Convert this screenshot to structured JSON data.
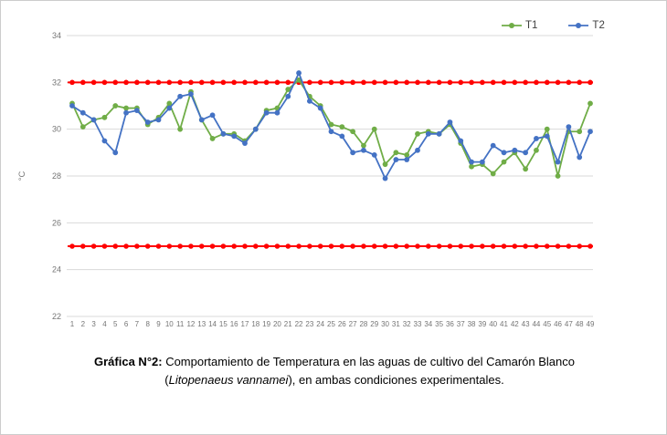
{
  "figure": {
    "caption": {
      "label": "Gráfica N°2:",
      "line1_rest": " Comportamiento de Temperatura en las aguas de cultivo del Camarón Blanco",
      "line2_open": "(",
      "line2_italic": "Litopenaeus vannamei",
      "line2_rest": "), en ambas condiciones experimentales."
    }
  },
  "chart_data": {
    "type": "line",
    "title": "",
    "xlabel": "",
    "ylabel": "°C",
    "ylim": [
      22,
      34
    ],
    "yticks": [
      22,
      24,
      26,
      28,
      30,
      32,
      34
    ],
    "grid": true,
    "legend": {
      "position": "top-right",
      "entries": [
        "T1",
        "T2"
      ]
    },
    "x": [
      1,
      2,
      3,
      4,
      5,
      6,
      7,
      8,
      9,
      10,
      11,
      12,
      13,
      14,
      15,
      16,
      17,
      18,
      19,
      20,
      21,
      22,
      23,
      24,
      25,
      26,
      27,
      28,
      29,
      30,
      31,
      32,
      33,
      34,
      35,
      36,
      37,
      38,
      39,
      40,
      41,
      42,
      43,
      44,
      45,
      46,
      47,
      48,
      49
    ],
    "series": [
      {
        "name": "T1",
        "color": "#70AD47",
        "values": [
          31.1,
          30.1,
          30.4,
          30.5,
          31.0,
          30.9,
          30.9,
          30.2,
          30.5,
          31.1,
          30.0,
          31.6,
          30.4,
          29.6,
          29.8,
          29.8,
          29.5,
          30.0,
          30.8,
          30.9,
          31.7,
          32.1,
          31.4,
          31.0,
          30.2,
          30.1,
          29.9,
          29.3,
          30.0,
          28.5,
          29.0,
          28.9,
          29.8,
          29.9,
          29.8,
          30.2,
          29.4,
          28.4,
          28.5,
          28.1,
          28.6,
          29.0,
          28.3,
          29.1,
          30.0,
          28.0,
          29.9,
          29.9,
          31.1
        ]
      },
      {
        "name": "T2",
        "color": "#4472C4",
        "values": [
          31.0,
          30.7,
          30.4,
          29.5,
          29.0,
          30.7,
          30.8,
          30.3,
          30.4,
          30.9,
          31.4,
          31.5,
          30.4,
          30.6,
          29.8,
          29.7,
          29.4,
          30.0,
          30.7,
          30.7,
          31.4,
          32.4,
          31.2,
          30.9,
          29.9,
          29.7,
          29.0,
          29.1,
          28.9,
          27.9,
          28.7,
          28.7,
          29.1,
          29.8,
          29.8,
          30.3,
          29.5,
          28.6,
          28.6,
          29.3,
          29.0,
          29.1,
          29.0,
          29.6,
          29.7,
          28.6,
          30.1,
          28.8,
          29.9
        ]
      }
    ],
    "reference_lines": [
      {
        "name": "upper-limit",
        "value": 32,
        "color": "#FF0000"
      },
      {
        "name": "lower-limit",
        "value": 25,
        "color": "#FF0000"
      }
    ]
  }
}
